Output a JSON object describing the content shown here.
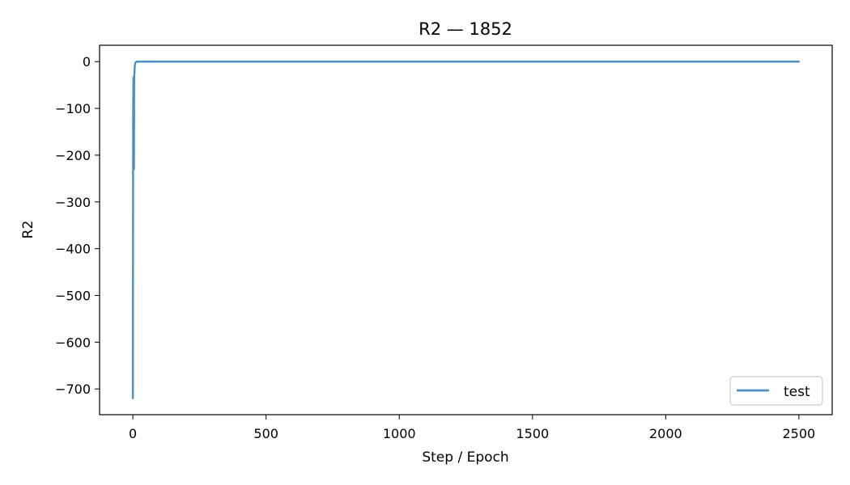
{
  "chart_data": {
    "type": "line",
    "title": "R2 — 1852",
    "xlabel": "Step / Epoch",
    "ylabel": "R2",
    "xlim": [
      -125,
      2625
    ],
    "ylim": [
      -755,
      35
    ],
    "xticks": [
      0,
      500,
      1000,
      1500,
      2000,
      2500
    ],
    "yticks": [
      0,
      -100,
      -200,
      -300,
      -400,
      -500,
      -600,
      -700
    ],
    "xtick_labels": [
      "0",
      "500",
      "1000",
      "1500",
      "2000",
      "2500"
    ],
    "ytick_labels": [
      "0",
      "−100",
      "−200",
      "−300",
      "−400",
      "−500",
      "−600",
      "−700"
    ],
    "grid": false,
    "legend_position": "lower-right",
    "colors": {
      "test": "#4c8fc4",
      "axes": "#000000",
      "legend_border": "#cccccc"
    },
    "series": [
      {
        "name": "test",
        "color": "#4c8fc4",
        "x": [
          0,
          1,
          2,
          3,
          4,
          5,
          6,
          7,
          8,
          9,
          10,
          12,
          14,
          16,
          18,
          20,
          25,
          30,
          40,
          50,
          75,
          100,
          150,
          200,
          300,
          500,
          750,
          1000,
          1250,
          1500,
          1750,
          2000,
          2250,
          2500
        ],
        "y": [
          -720,
          -120,
          -35,
          -33,
          -230,
          -30,
          -25,
          -10,
          -6,
          -3,
          -2,
          -1,
          0,
          0,
          0,
          0,
          0,
          0,
          0,
          0,
          0,
          0,
          0,
          0,
          0,
          0,
          0,
          0,
          0,
          0,
          0,
          0,
          0,
          0
        ]
      }
    ]
  }
}
